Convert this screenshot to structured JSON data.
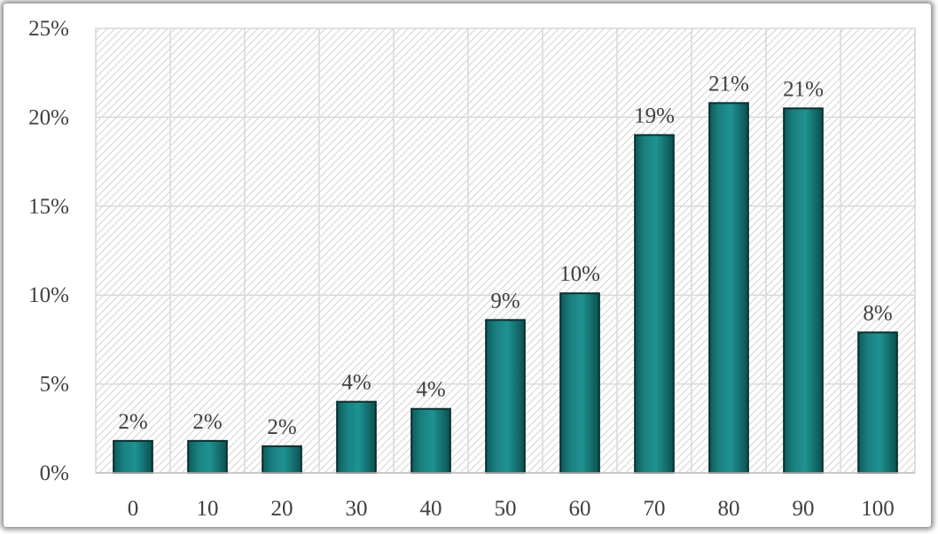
{
  "chart_data": {
    "type": "bar",
    "categories": [
      "0",
      "10",
      "20",
      "30",
      "40",
      "50",
      "60",
      "70",
      "80",
      "90",
      "100"
    ],
    "values": [
      1.8,
      1.8,
      1.5,
      4.0,
      3.6,
      8.6,
      10.1,
      19.0,
      20.8,
      20.5,
      7.9
    ],
    "data_labels": [
      "2%",
      "2%",
      "2%",
      "4%",
      "4%",
      "9%",
      "10%",
      "19%",
      "21%",
      "21%",
      "8%"
    ],
    "y_ticks": [
      "0%",
      "5%",
      "10%",
      "15%",
      "20%",
      "25%"
    ],
    "ylim": [
      0,
      25
    ],
    "y_unit": "%",
    "grid": true,
    "bar_color": "#1b8585",
    "legend": "none"
  }
}
